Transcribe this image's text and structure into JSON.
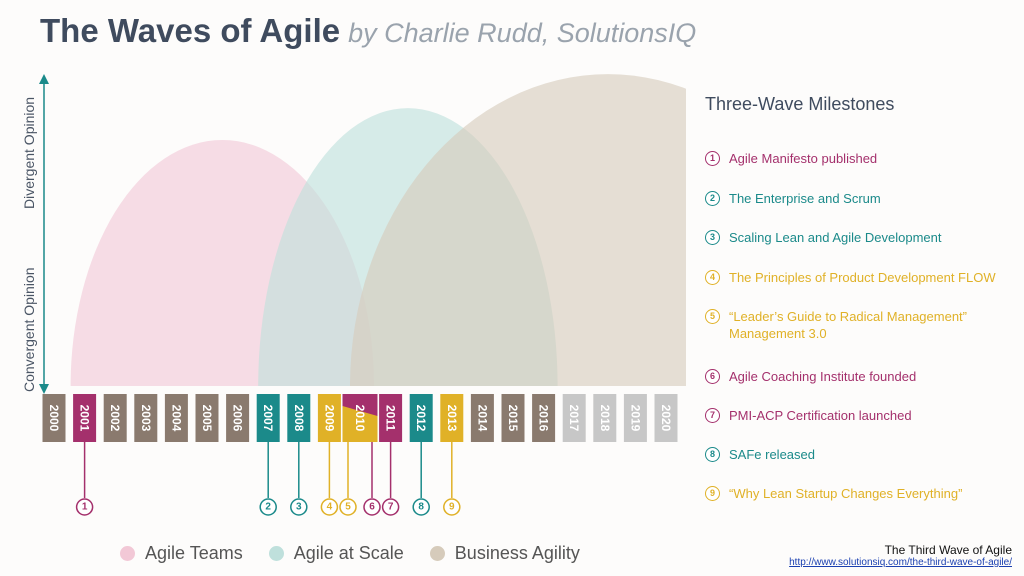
{
  "title": {
    "main": "The Waves of Agile",
    "by": "by Charlie Rudd, SolutionsIQ"
  },
  "axis": {
    "top_label": "Divergent Opinion",
    "bottom_label": "Convergent Opinion"
  },
  "colors": {
    "magenta": "#a4306c",
    "teal": "#1b8a8a",
    "gold": "#e0b127",
    "year_gray": "#8a7a6e",
    "year_light": "#c7c7c7"
  },
  "waves": [
    {
      "name": "Agile Teams",
      "color": "#f2c8d6",
      "start_year": 2001,
      "end_year": 2010
    },
    {
      "name": "Agile at Scale",
      "color": "#bfe0dc",
      "start_year": 2007,
      "end_year": 2016
    },
    {
      "name": "Business Agility",
      "color": "#d6cbbb",
      "start_year": 2010,
      "end_year": 2020
    }
  ],
  "years": [
    {
      "label": "2000",
      "style": "gray"
    },
    {
      "label": "2001",
      "style": "magenta"
    },
    {
      "label": "2002",
      "style": "gray"
    },
    {
      "label": "2003",
      "style": "gray"
    },
    {
      "label": "2004",
      "style": "gray"
    },
    {
      "label": "2005",
      "style": "gray"
    },
    {
      "label": "2006",
      "style": "gray"
    },
    {
      "label": "2007",
      "style": "teal"
    },
    {
      "label": "2008",
      "style": "teal"
    },
    {
      "label": "2009",
      "style": "gold"
    },
    {
      "label": "2010",
      "style": "split"
    },
    {
      "label": "2011",
      "style": "magenta"
    },
    {
      "label": "2012",
      "style": "teal"
    },
    {
      "label": "2013",
      "style": "gold"
    },
    {
      "label": "2014",
      "style": "gray"
    },
    {
      "label": "2015",
      "style": "gray"
    },
    {
      "label": "2016",
      "style": "gray"
    },
    {
      "label": "2017",
      "style": "light"
    },
    {
      "label": "2018",
      "style": "light"
    },
    {
      "label": "2019",
      "style": "light"
    },
    {
      "label": "2020",
      "style": "light"
    }
  ],
  "milestones_title": "Three-Wave Milestones",
  "milestones": [
    {
      "num": "1",
      "text": "Agile Manifesto published",
      "color": "#a4306c",
      "year": "2001"
    },
    {
      "num": "2",
      "text": "The Enterprise and Scrum",
      "color": "#1b8a8a",
      "year": "2007"
    },
    {
      "num": "3",
      "text": "Scaling Lean and Agile Development",
      "color": "#1b8a8a",
      "year": "2008"
    },
    {
      "num": "4",
      "text": "The Principles of Product Development FLOW",
      "color": "#e0b127",
      "year": "2009"
    },
    {
      "num": "5",
      "text": "“Leader’s Guide to Radical Management”\nManagement 3.0",
      "color": "#e0b127",
      "year": "2010"
    },
    {
      "num": "6",
      "text": "Agile Coaching Institute founded",
      "color": "#a4306c",
      "year": "2010"
    },
    {
      "num": "7",
      "text": "PMI-ACP Certification launched",
      "color": "#a4306c",
      "year": "2011"
    },
    {
      "num": "8",
      "text": "SAFe released",
      "color": "#1b8a8a",
      "year": "2012"
    },
    {
      "num": "9",
      "text": "“Why Lean Startup Changes Everything”",
      "color": "#e0b127",
      "year": "2013"
    }
  ],
  "legend": [
    {
      "label": "Agile Teams",
      "color": "#f2c8d6"
    },
    {
      "label": "Agile at Scale",
      "color": "#bfe0dc"
    },
    {
      "label": "Business Agility",
      "color": "#d6cbbb"
    }
  ],
  "credit": {
    "title": "The Third Wave of Agile",
    "link": "http://www.solutionsiq.com/the-third-wave-of-agile/"
  }
}
